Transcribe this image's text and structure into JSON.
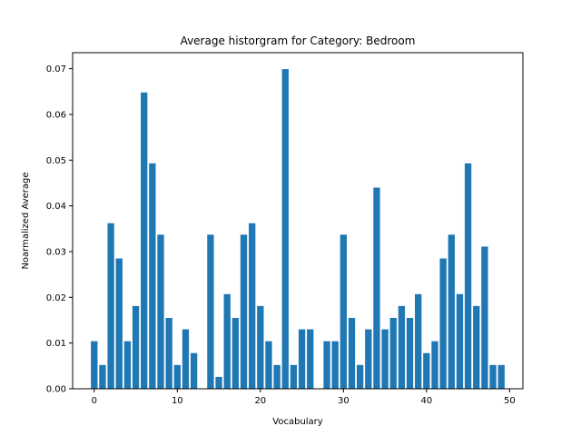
{
  "chart_data": {
    "type": "bar",
    "title": "Average historgram for Category: Bedroom",
    "xlabel": "Vocabulary",
    "ylabel": "Noarmalized Average",
    "xlim": [
      -2.6,
      51.6
    ],
    "ylim": [
      0,
      0.0735
    ],
    "xticks": [
      0,
      10,
      20,
      30,
      40,
      50
    ],
    "yticks": [
      0.0,
      0.01,
      0.02,
      0.03,
      0.04,
      0.05,
      0.06,
      0.07
    ],
    "ytick_labels": [
      "0.00",
      "0.01",
      "0.02",
      "0.03",
      "0.04",
      "0.05",
      "0.06",
      "0.07"
    ],
    "bar_color": "#1f77b4",
    "grid": false,
    "x": [
      0,
      1,
      2,
      3,
      4,
      5,
      6,
      7,
      8,
      9,
      10,
      11,
      12,
      13,
      14,
      15,
      16,
      17,
      18,
      19,
      20,
      21,
      22,
      23,
      24,
      25,
      26,
      27,
      28,
      29,
      30,
      31,
      32,
      33,
      34,
      35,
      36,
      37,
      38,
      39,
      40,
      41,
      42,
      43,
      44,
      45,
      46,
      47,
      48,
      49
    ],
    "values": [
      0.0104,
      0.0052,
      0.0362,
      0.0285,
      0.0104,
      0.0181,
      0.0648,
      0.0493,
      0.0337,
      0.0155,
      0.0052,
      0.013,
      0.0078,
      0.0,
      0.0337,
      0.0026,
      0.0207,
      0.0155,
      0.0337,
      0.0362,
      0.0181,
      0.0104,
      0.0052,
      0.0699,
      0.0052,
      0.013,
      0.013,
      0.0,
      0.0104,
      0.0104,
      0.0337,
      0.0155,
      0.0052,
      0.013,
      0.044,
      0.013,
      0.0155,
      0.0181,
      0.0155,
      0.0207,
      0.0078,
      0.0104,
      0.0285,
      0.0337,
      0.0207,
      0.0493,
      0.0181,
      0.0311,
      0.0052,
      0.0052
    ]
  }
}
